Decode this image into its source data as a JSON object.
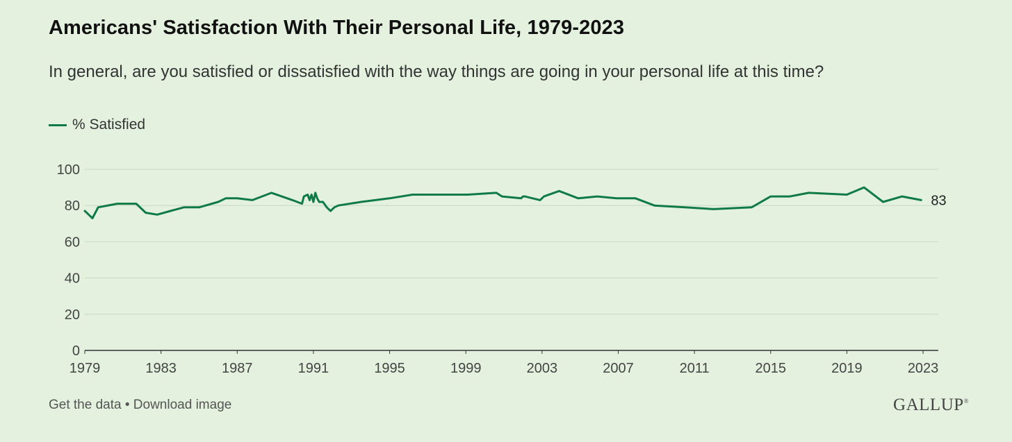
{
  "header": {
    "title": "Americans' Satisfaction With Their Personal Life, 1979-2023",
    "subtitle": "In general, are you satisfied or dissatisfied with the way things are going in your personal life at this time?"
  },
  "legend": {
    "label": "% Satisfied"
  },
  "footer": {
    "get_data": "Get the data",
    "separator": "•",
    "download": "Download image",
    "brand": "GALLUP",
    "brand_mark": "®"
  },
  "colors": {
    "line": "#0f7a45",
    "background": "#e3f1de",
    "grid": "#c9d9c4",
    "axis": "#333333"
  },
  "chart_data": {
    "type": "line",
    "title": "Americans' Satisfaction With Their Personal Life, 1979-2023",
    "xlabel": "",
    "ylabel": "",
    "xlim": [
      1979,
      2023.8
    ],
    "ylim": [
      0,
      100
    ],
    "yticks": [
      0,
      20,
      40,
      60,
      80,
      100
    ],
    "xticks": [
      1979,
      1983,
      1987,
      1991,
      1995,
      1999,
      2003,
      2007,
      2011,
      2015,
      2019,
      2023
    ],
    "grid": true,
    "legend_position": "top-left",
    "end_label": "83",
    "series": [
      {
        "name": "% Satisfied",
        "x": [
          1979.0,
          1979.4,
          1979.7,
          1980.7,
          1981.7,
          1982.2,
          1982.8,
          1983.5,
          1984.2,
          1985.0,
          1986.0,
          1986.4,
          1987.0,
          1987.8,
          1988.8,
          1989.9,
          1990.4,
          1990.5,
          1990.7,
          1990.8,
          1990.9,
          1991.0,
          1991.1,
          1991.2,
          1991.3,
          1991.5,
          1991.7,
          1991.9,
          1992.1,
          1992.3,
          1993.5,
          1995.0,
          1996.2,
          1997.5,
          1999.1,
          2000.6,
          2000.9,
          2001.9,
          2002.0,
          2002.1,
          2002.9,
          2003.1,
          2003.9,
          2004.9,
          2005.9,
          2006.9,
          2007.9,
          2008.9,
          2010.5,
          2012.0,
          2014.0,
          2015.0,
          2016.0,
          2017.0,
          2019.0,
          2019.9,
          2020.9,
          2021.9,
          2022.9
        ],
        "values": [
          77,
          73,
          79,
          81,
          81,
          76,
          75,
          77,
          79,
          79,
          82,
          84,
          84,
          83,
          87,
          83,
          81,
          85,
          86,
          83,
          86,
          82,
          87,
          84,
          82,
          82,
          79,
          77,
          79,
          80,
          82,
          84,
          86,
          86,
          86,
          87,
          85,
          84,
          85,
          85,
          83,
          85,
          88,
          84,
          85,
          84,
          84,
          80,
          79,
          78,
          79,
          85,
          85,
          87,
          86,
          90,
          82,
          85,
          83
        ]
      }
    ]
  }
}
